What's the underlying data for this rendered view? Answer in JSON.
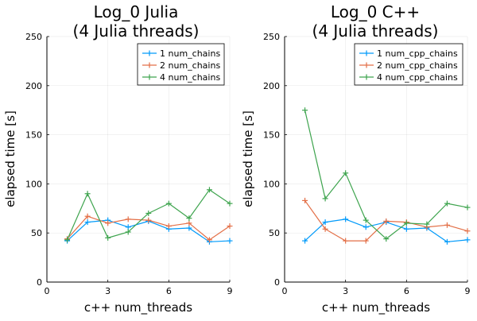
{
  "chart_data": [
    {
      "type": "line",
      "title_lines": [
        "Log_0 Julia",
        "(4 Julia threads)"
      ],
      "xlabel": "c++ num_threads",
      "ylabel": "elapsed time [s]",
      "xlim": [
        0,
        9
      ],
      "ylim": [
        0,
        250
      ],
      "x_ticks": [
        "0",
        "3",
        "6",
        "9"
      ],
      "y_ticks": [
        "0",
        "50",
        "100",
        "150",
        "200",
        "250"
      ],
      "x_tick_values": [
        0,
        3,
        6,
        9
      ],
      "y_tick_values": [
        0,
        50,
        100,
        150,
        200,
        250
      ],
      "grid": true,
      "legend_position": "top-right",
      "x": [
        1,
        2,
        3,
        4,
        5,
        6,
        7,
        8,
        9
      ],
      "series": [
        {
          "name": "1 num_chains",
          "color": "#009AFA",
          "values": [
            42,
            61,
            63,
            56,
            62,
            54,
            55,
            41,
            42
          ]
        },
        {
          "name": "2 num_chains",
          "color": "#E36F47",
          "values": [
            44,
            67,
            60,
            64,
            63,
            57,
            60,
            43,
            57
          ]
        },
        {
          "name": "4 num_chains",
          "color": "#3EA44E",
          "values": [
            43,
            90,
            45,
            51,
            70,
            80,
            65,
            94,
            80
          ]
        }
      ]
    },
    {
      "type": "line",
      "title_lines": [
        "Log_0 C++",
        "(4 Julia threads)"
      ],
      "xlabel": "c++ num_threads",
      "ylabel": "elapsed time [s]",
      "xlim": [
        0,
        9
      ],
      "ylim": [
        0,
        250
      ],
      "x_ticks": [
        "0",
        "3",
        "6",
        "9"
      ],
      "y_ticks": [
        "0",
        "50",
        "100",
        "150",
        "200",
        "250"
      ],
      "x_tick_values": [
        0,
        3,
        6,
        9
      ],
      "y_tick_values": [
        0,
        50,
        100,
        150,
        200,
        250
      ],
      "grid": true,
      "legend_position": "top-right",
      "x": [
        1,
        2,
        3,
        4,
        5,
        6,
        7,
        8,
        9
      ],
      "series": [
        {
          "name": "1 num_cpp_chains",
          "color": "#009AFA",
          "values": [
            42,
            61,
            64,
            56,
            61,
            54,
            55,
            41,
            43
          ]
        },
        {
          "name": "2 num_cpp_chains",
          "color": "#E36F47",
          "values": [
            83,
            54,
            42,
            42,
            62,
            61,
            56,
            58,
            52
          ]
        },
        {
          "name": "4 num_cpp_chains",
          "color": "#3EA44E",
          "values": [
            175,
            85,
            111,
            63,
            44,
            60,
            59,
            80,
            76
          ]
        }
      ]
    }
  ]
}
